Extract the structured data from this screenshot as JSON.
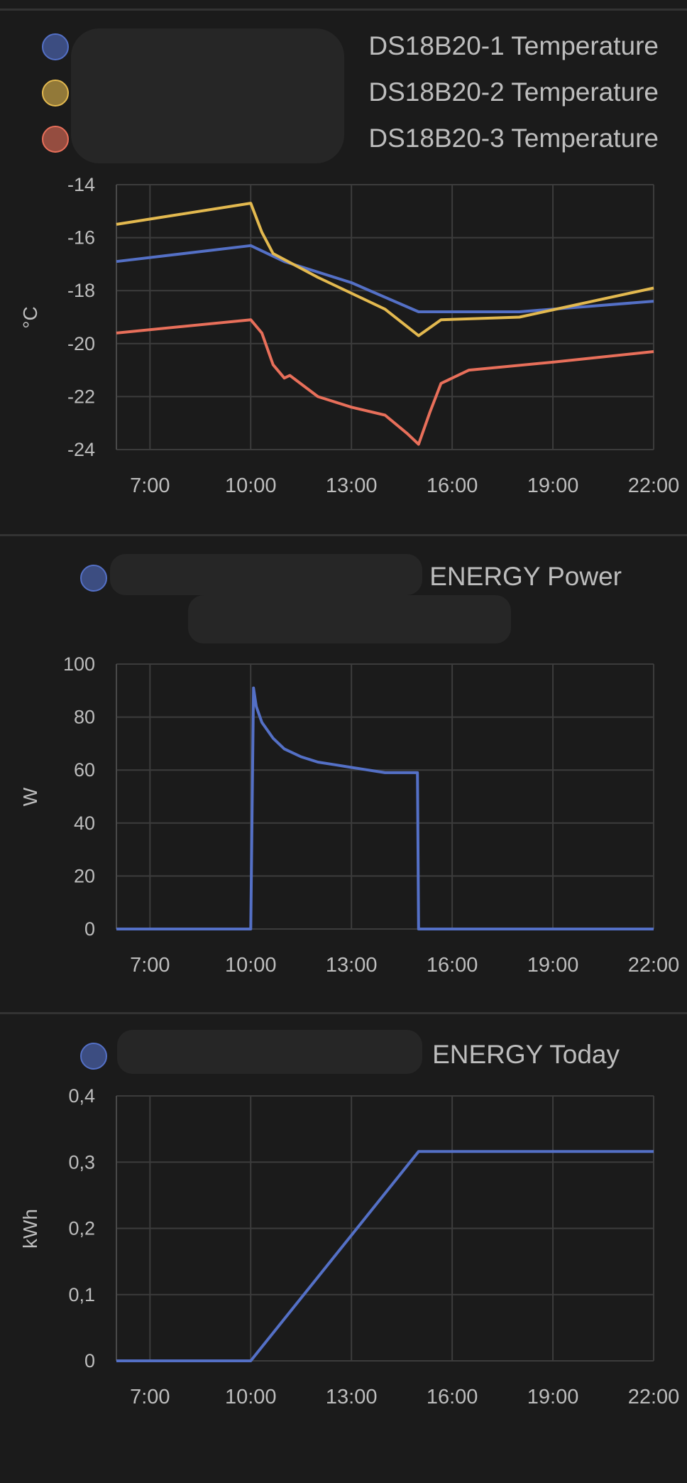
{
  "charts": [
    {
      "legend": [
        {
          "label": "DS18B20-1 Temperature",
          "color": "#5470c6"
        },
        {
          "label": "DS18B20-2 Temperature",
          "color": "#e3b94f"
        },
        {
          "label": "DS18B20-3 Temperature",
          "color": "#e86f5a"
        }
      ]
    },
    {
      "legend": [
        {
          "label": "ENERGY Power",
          "color": "#5470c6"
        }
      ]
    },
    {
      "legend": [
        {
          "label": "ENERGY Today",
          "color": "#5470c6"
        }
      ]
    }
  ],
  "chart_data": [
    {
      "type": "line",
      "ylabel": "°C",
      "ylim": [
        -24,
        -14
      ],
      "yticks": [
        "-14",
        "-16",
        "-18",
        "-20",
        "-22",
        "-24"
      ],
      "xlim": [
        "6:00",
        "22:00"
      ],
      "xticks": [
        "7:00",
        "10:00",
        "13:00",
        "16:00",
        "19:00",
        "22:00"
      ],
      "grid": true,
      "series": [
        {
          "name": "DS18B20-1 Temperature",
          "color": "#5470c6",
          "points": [
            [
              "6:00",
              -16.9
            ],
            [
              "10:00",
              -16.3
            ],
            [
              "11:00",
              -16.9
            ],
            [
              "13:00",
              -17.7
            ],
            [
              "15:00",
              -18.8
            ],
            [
              "18:00",
              -18.8
            ],
            [
              "20:00",
              -18.6
            ],
            [
              "22:00",
              -18.4
            ]
          ]
        },
        {
          "name": "DS18B20-2 Temperature",
          "color": "#e3b94f",
          "points": [
            [
              "6:00",
              -15.5
            ],
            [
              "10:00",
              -14.7
            ],
            [
              "10:20",
              -15.8
            ],
            [
              "10:40",
              -16.6
            ],
            [
              "12:00",
              -17.5
            ],
            [
              "14:00",
              -18.7
            ],
            [
              "15:00",
              -19.7
            ],
            [
              "15:40",
              -19.1
            ],
            [
              "18:00",
              -19.0
            ],
            [
              "22:00",
              -17.9
            ]
          ]
        },
        {
          "name": "DS18B20-3 Temperature",
          "color": "#e86f5a",
          "points": [
            [
              "6:00",
              -19.6
            ],
            [
              "10:00",
              -19.1
            ],
            [
              "10:20",
              -19.6
            ],
            [
              "10:40",
              -20.8
            ],
            [
              "11:00",
              -21.3
            ],
            [
              "11:10",
              -21.2
            ],
            [
              "12:00",
              -22.0
            ],
            [
              "13:00",
              -22.4
            ],
            [
              "14:00",
              -22.7
            ],
            [
              "14:40",
              -23.4
            ],
            [
              "15:00",
              -23.8
            ],
            [
              "15:20",
              -22.6
            ],
            [
              "15:40",
              -21.5
            ],
            [
              "16:30",
              -21.0
            ],
            [
              "19:00",
              -20.7
            ],
            [
              "22:00",
              -20.3
            ]
          ]
        }
      ]
    },
    {
      "type": "line",
      "ylabel": "W",
      "ylim": [
        0,
        100
      ],
      "yticks": [
        "100",
        "80",
        "60",
        "40",
        "20",
        "0"
      ],
      "xlim": [
        "6:00",
        "22:00"
      ],
      "xticks": [
        "7:00",
        "10:00",
        "13:00",
        "16:00",
        "19:00",
        "22:00"
      ],
      "grid": true,
      "series": [
        {
          "name": "ENERGY Power",
          "color": "#5470c6",
          "points": [
            [
              "6:00",
              0
            ],
            [
              "10:00",
              0
            ],
            [
              "10:05",
              91
            ],
            [
              "10:10",
              84
            ],
            [
              "10:20",
              78
            ],
            [
              "10:40",
              72
            ],
            [
              "11:00",
              68
            ],
            [
              "11:30",
              65
            ],
            [
              "12:00",
              63
            ],
            [
              "12:30",
              62
            ],
            [
              "13:00",
              61
            ],
            [
              "14:00",
              59
            ],
            [
              "14:58",
              59
            ],
            [
              "15:00",
              0
            ],
            [
              "22:00",
              0
            ]
          ]
        }
      ]
    },
    {
      "type": "line",
      "ylabel": "kWh",
      "ylim": [
        0,
        0.4
      ],
      "yticks": [
        "0,4",
        "0,3",
        "0,2",
        "0,1",
        "0"
      ],
      "xlim": [
        "6:00",
        "22:00"
      ],
      "xticks": [
        "7:00",
        "10:00",
        "13:00",
        "16:00",
        "19:00",
        "22:00"
      ],
      "grid": true,
      "series": [
        {
          "name": "ENERGY Today",
          "color": "#5470c6",
          "points": [
            [
              "6:00",
              0
            ],
            [
              "10:00",
              0
            ],
            [
              "15:00",
              0.316
            ],
            [
              "22:00",
              0.316
            ]
          ]
        }
      ]
    }
  ]
}
